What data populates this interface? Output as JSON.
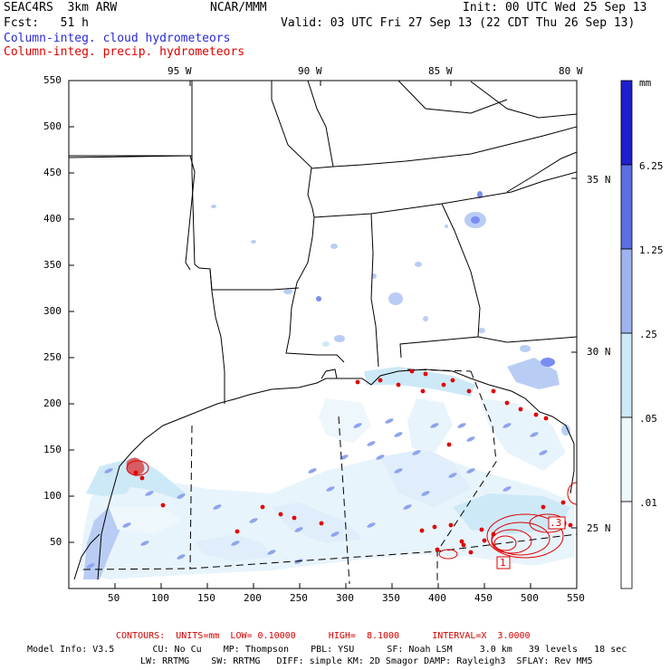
{
  "header": {
    "model": "SEAC4RS  3km ARW",
    "org": "NCAR/MMM",
    "init": "Init: 00 UTC Wed 25 Sep 13",
    "fcst": "Fcst:   51 h",
    "valid": "Valid: 03 UTC Fri 27 Sep 13 (22 CDT Thu 26 Sep 13)",
    "field1": "Column-integ. cloud hydrometeors",
    "field2": "Column-integ. precip. hydrometeors"
  },
  "colors": {
    "field1": "#2a2adc",
    "field2": "#e00000",
    "cloud_light": "#cde9f7",
    "cloud_mid": "#9fb3f0",
    "cloud_dark": "#5b6fe3",
    "cloud_darkest": "#1f1fd0"
  },
  "lon_labels": [
    "95 W",
    "90 W",
    "85 W",
    "80 W"
  ],
  "lat_labels": [
    "35 N",
    "30 N",
    "25 N"
  ],
  "y_ticks": [
    "550",
    "500",
    "450",
    "400",
    "350",
    "300",
    "250",
    "200",
    "150",
    "100",
    "50"
  ],
  "x_ticks": [
    "50",
    "100",
    "150",
    "200",
    "250",
    "300",
    "350",
    "400",
    "450",
    "500",
    "550"
  ],
  "colorbar": {
    "unit": "mm",
    "labels": [
      "6.25",
      "1.25",
      ".25",
      ".05",
      ".01"
    ]
  },
  "contour_labels": [
    "1",
    ".3"
  ],
  "footer": {
    "contours": "CONTOURS:  UNITS=mm  LOW= 0.10000      HIGH=  8.1000      INTERVAL=X  3.0000",
    "line1": "Model Info: V3.5       CU: No Cu    MP: Thompson    PBL: YSU      SF: Noah LSM     3.0 km   39 levels   18 sec",
    "line2": "LW: RRTMG    SW: RRTMG   DIFF: simple KM: 2D Smagor DAMP: Rayleigh3  SFLAY: Rev MM5"
  }
}
